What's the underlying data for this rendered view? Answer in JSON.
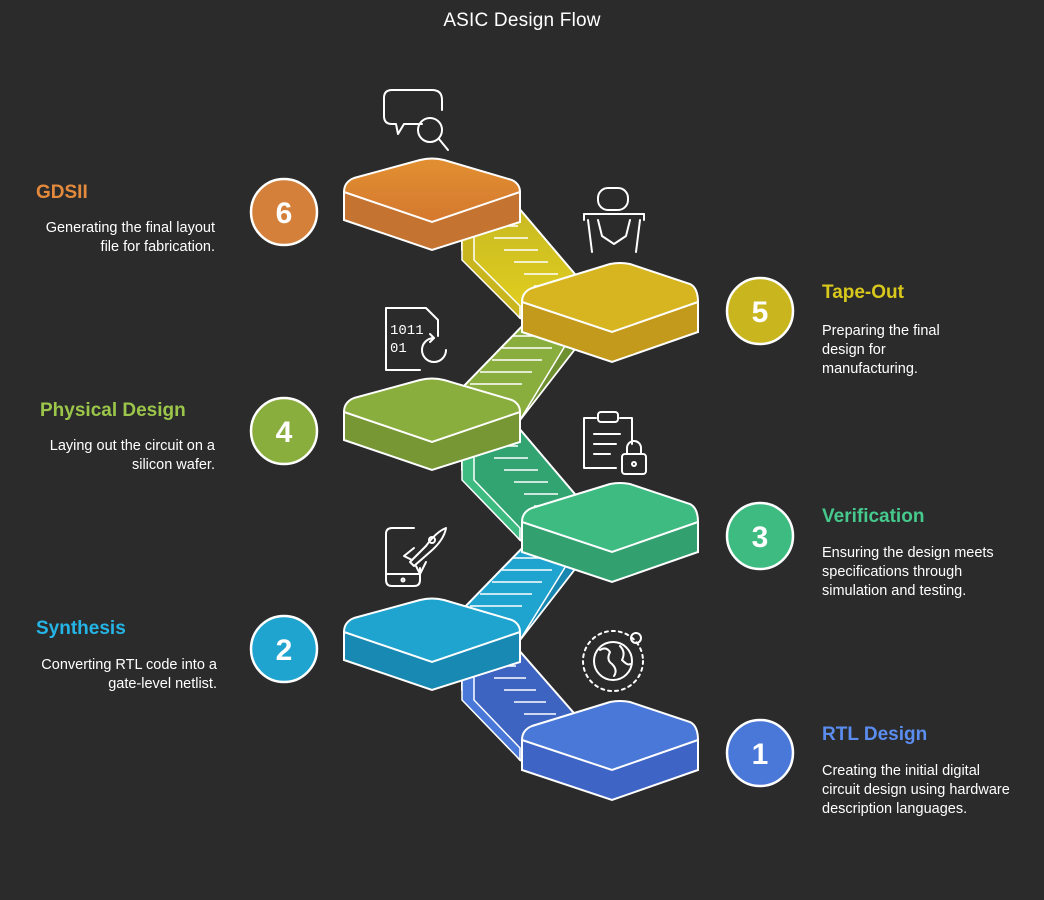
{
  "title": "ASIC Design Flow",
  "colors": {
    "background": "#2b2b2b",
    "step1": "#4a78d8",
    "step2": "#1fa4cf",
    "step3": "#3dbb80",
    "step4": "#8aae3e",
    "step5": "#c9b61f",
    "step6": "#d4803a"
  },
  "steps": [
    {
      "number": "1",
      "title": "RTL Design",
      "description": "Creating the initial digital circuit design using hardware description languages.",
      "icon": "globe-icon"
    },
    {
      "number": "2",
      "title": "Synthesis",
      "description": "Converting RTL code into a gate-level netlist.",
      "icon": "phone-rocket-icon"
    },
    {
      "number": "3",
      "title": "Verification",
      "description": "Ensuring the design meets specifications through simulation and testing.",
      "icon": "clipboard-lock-icon"
    },
    {
      "number": "4",
      "title": "Physical Design",
      "description": "Laying out the circuit on a silicon wafer.",
      "icon": "binary-file-icon"
    },
    {
      "number": "5",
      "title": "Tape-Out",
      "description": "Preparing the final design for manufacturing.",
      "icon": "chair-icon"
    },
    {
      "number": "6",
      "title": "GDSII",
      "description": "Generating the final layout file for fabrication.",
      "icon": "chat-search-icon"
    }
  ]
}
